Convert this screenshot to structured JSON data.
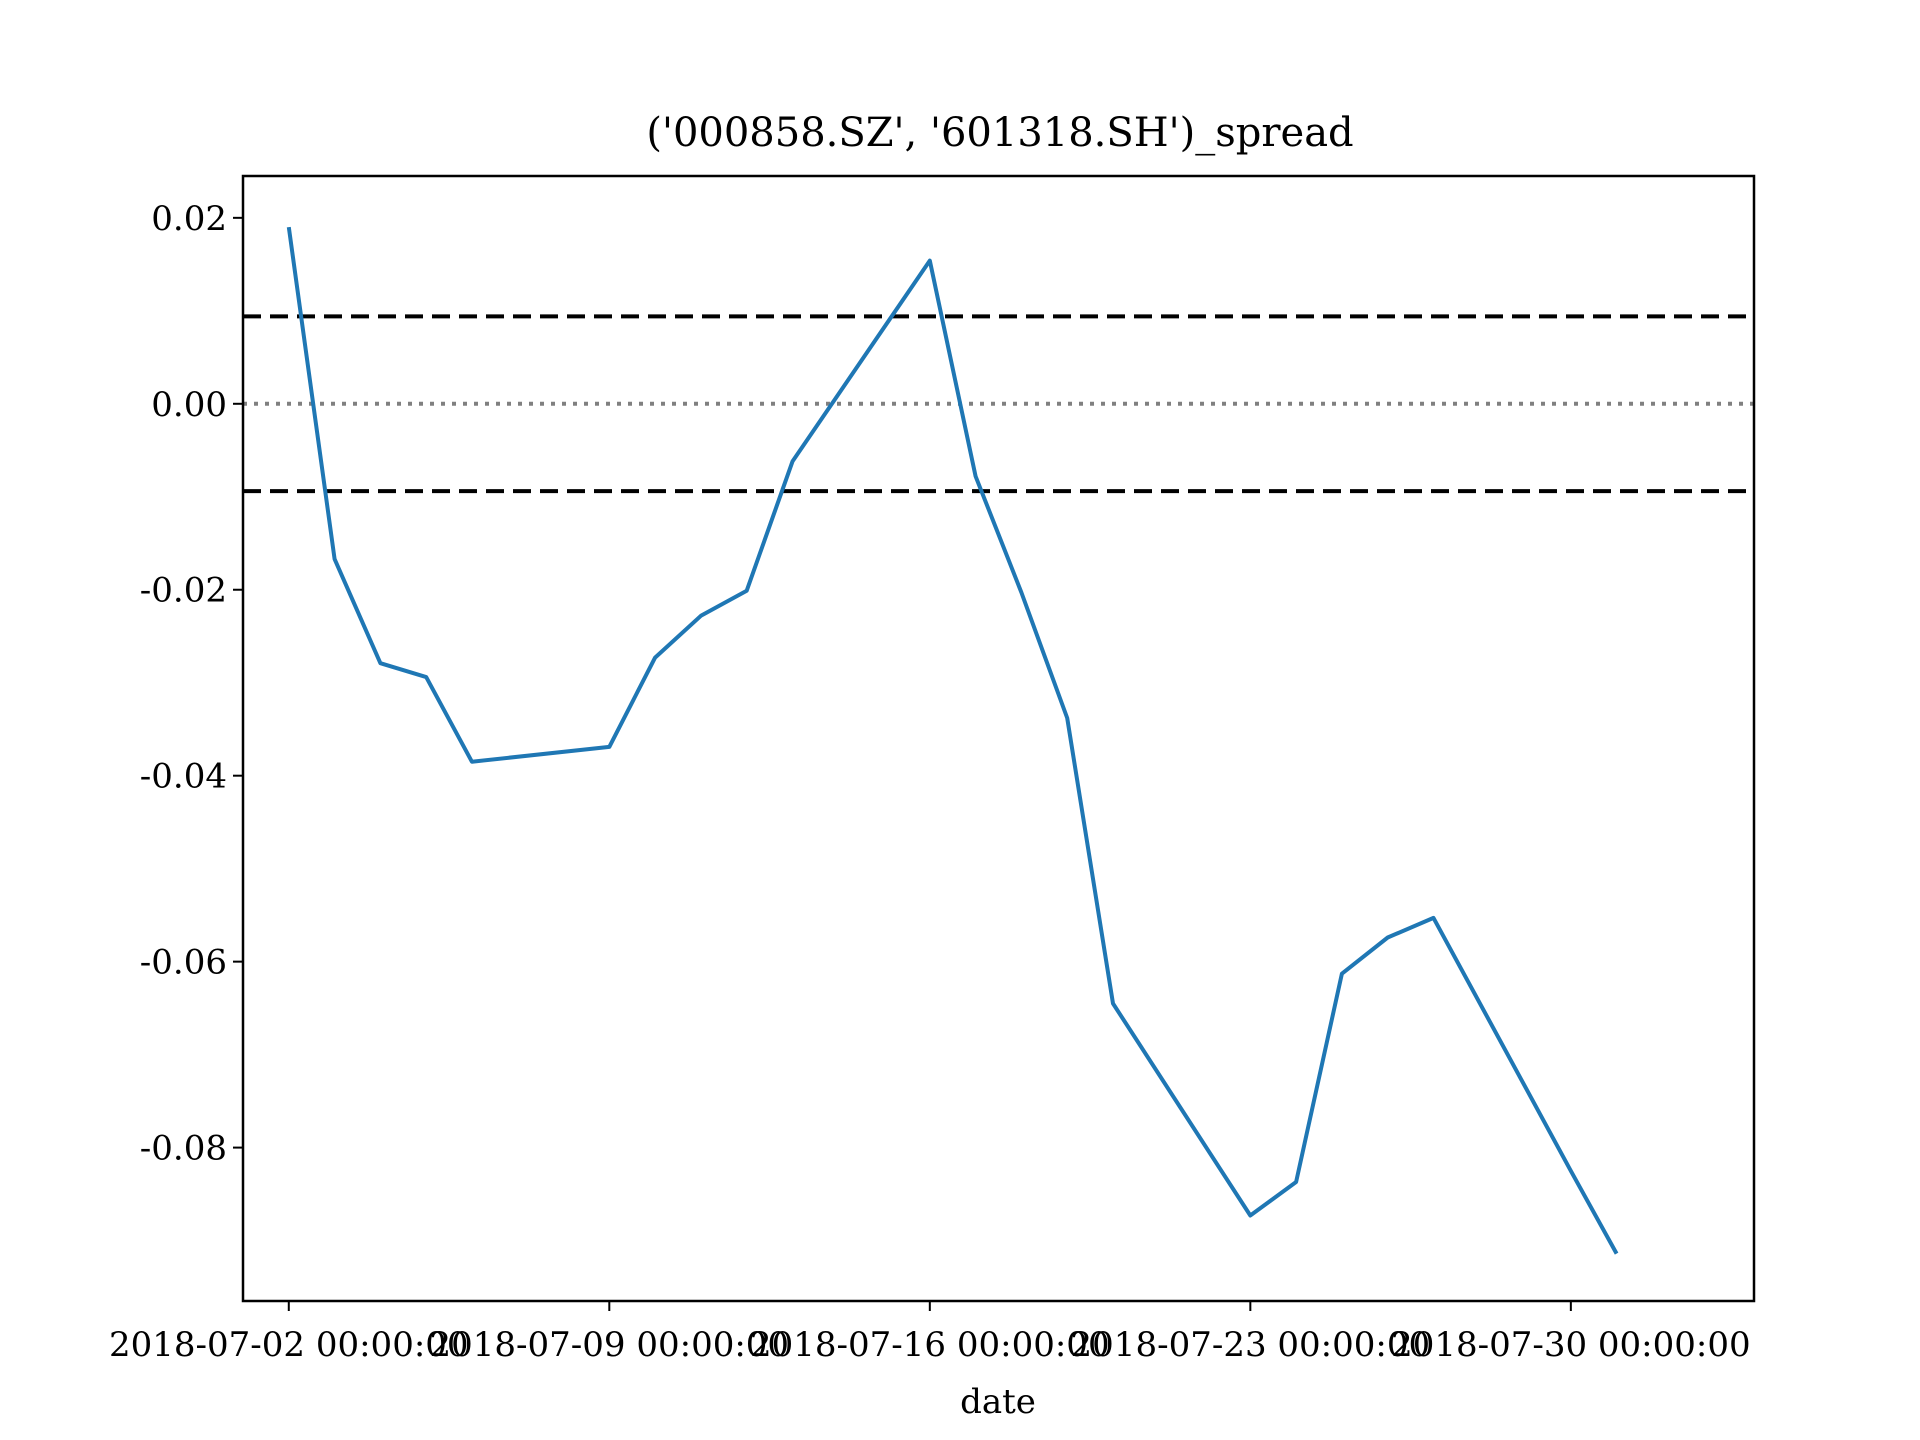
{
  "chart_data": {
    "type": "line",
    "title": "('000858.SZ', '601318.SH')_spread",
    "xlabel": "date",
    "ylabel": "",
    "ylim": [
      -0.0965,
      0.0245
    ],
    "xlim": [
      "2018-07-01",
      "2018-08-03"
    ],
    "grid": false,
    "legend": "none",
    "x_ticks": [
      {
        "date": "2018-07-02",
        "label": "2018-07-02 00:00:00"
      },
      {
        "date": "2018-07-09",
        "label": "2018-07-09 00:00:00"
      },
      {
        "date": "2018-07-16",
        "label": "2018-07-16 00:00:00"
      },
      {
        "date": "2018-07-23",
        "label": "2018-07-23 00:00:00"
      },
      {
        "date": "2018-07-30",
        "label": "2018-07-30 00:00:00"
      }
    ],
    "y_ticks": [
      {
        "value": 0.02,
        "label": "0.02"
      },
      {
        "value": 0.0,
        "label": "0.00"
      },
      {
        "value": -0.02,
        "label": "-0.02"
      },
      {
        "value": -0.04,
        "label": "-0.04"
      },
      {
        "value": -0.06,
        "label": "-0.06"
      },
      {
        "value": -0.08,
        "label": "-0.08"
      }
    ],
    "series": [
      {
        "color": "#1f77b4",
        "x": [
          "2018-07-02",
          "2018-07-03",
          "2018-07-04",
          "2018-07-05",
          "2018-07-06",
          "2018-07-09",
          "2018-07-10",
          "2018-07-11",
          "2018-07-12",
          "2018-07-13",
          "2018-07-16",
          "2018-07-17",
          "2018-07-18",
          "2018-07-19",
          "2018-07-20",
          "2018-07-23",
          "2018-07-24",
          "2018-07-25",
          "2018-07-26",
          "2018-07-27",
          "2018-07-30",
          "2018-07-31"
        ],
        "values": [
          0.019,
          -0.0167,
          -0.0279,
          -0.0294,
          -0.0385,
          -0.0369,
          -0.0273,
          -0.0228,
          -0.0201,
          -0.0062,
          0.0154,
          -0.0078,
          -0.0203,
          -0.0338,
          -0.0645,
          -0.0873,
          -0.0837,
          -0.0613,
          -0.0574,
          -0.0553,
          -0.0825,
          -0.0914
        ]
      }
    ],
    "hlines": [
      {
        "y": 0.0094,
        "style": "dashed",
        "color": "#000000"
      },
      {
        "y": -0.0094,
        "style": "dashed",
        "color": "#000000"
      },
      {
        "y": 0.0,
        "style": "dotted",
        "color": "#808080"
      }
    ]
  }
}
